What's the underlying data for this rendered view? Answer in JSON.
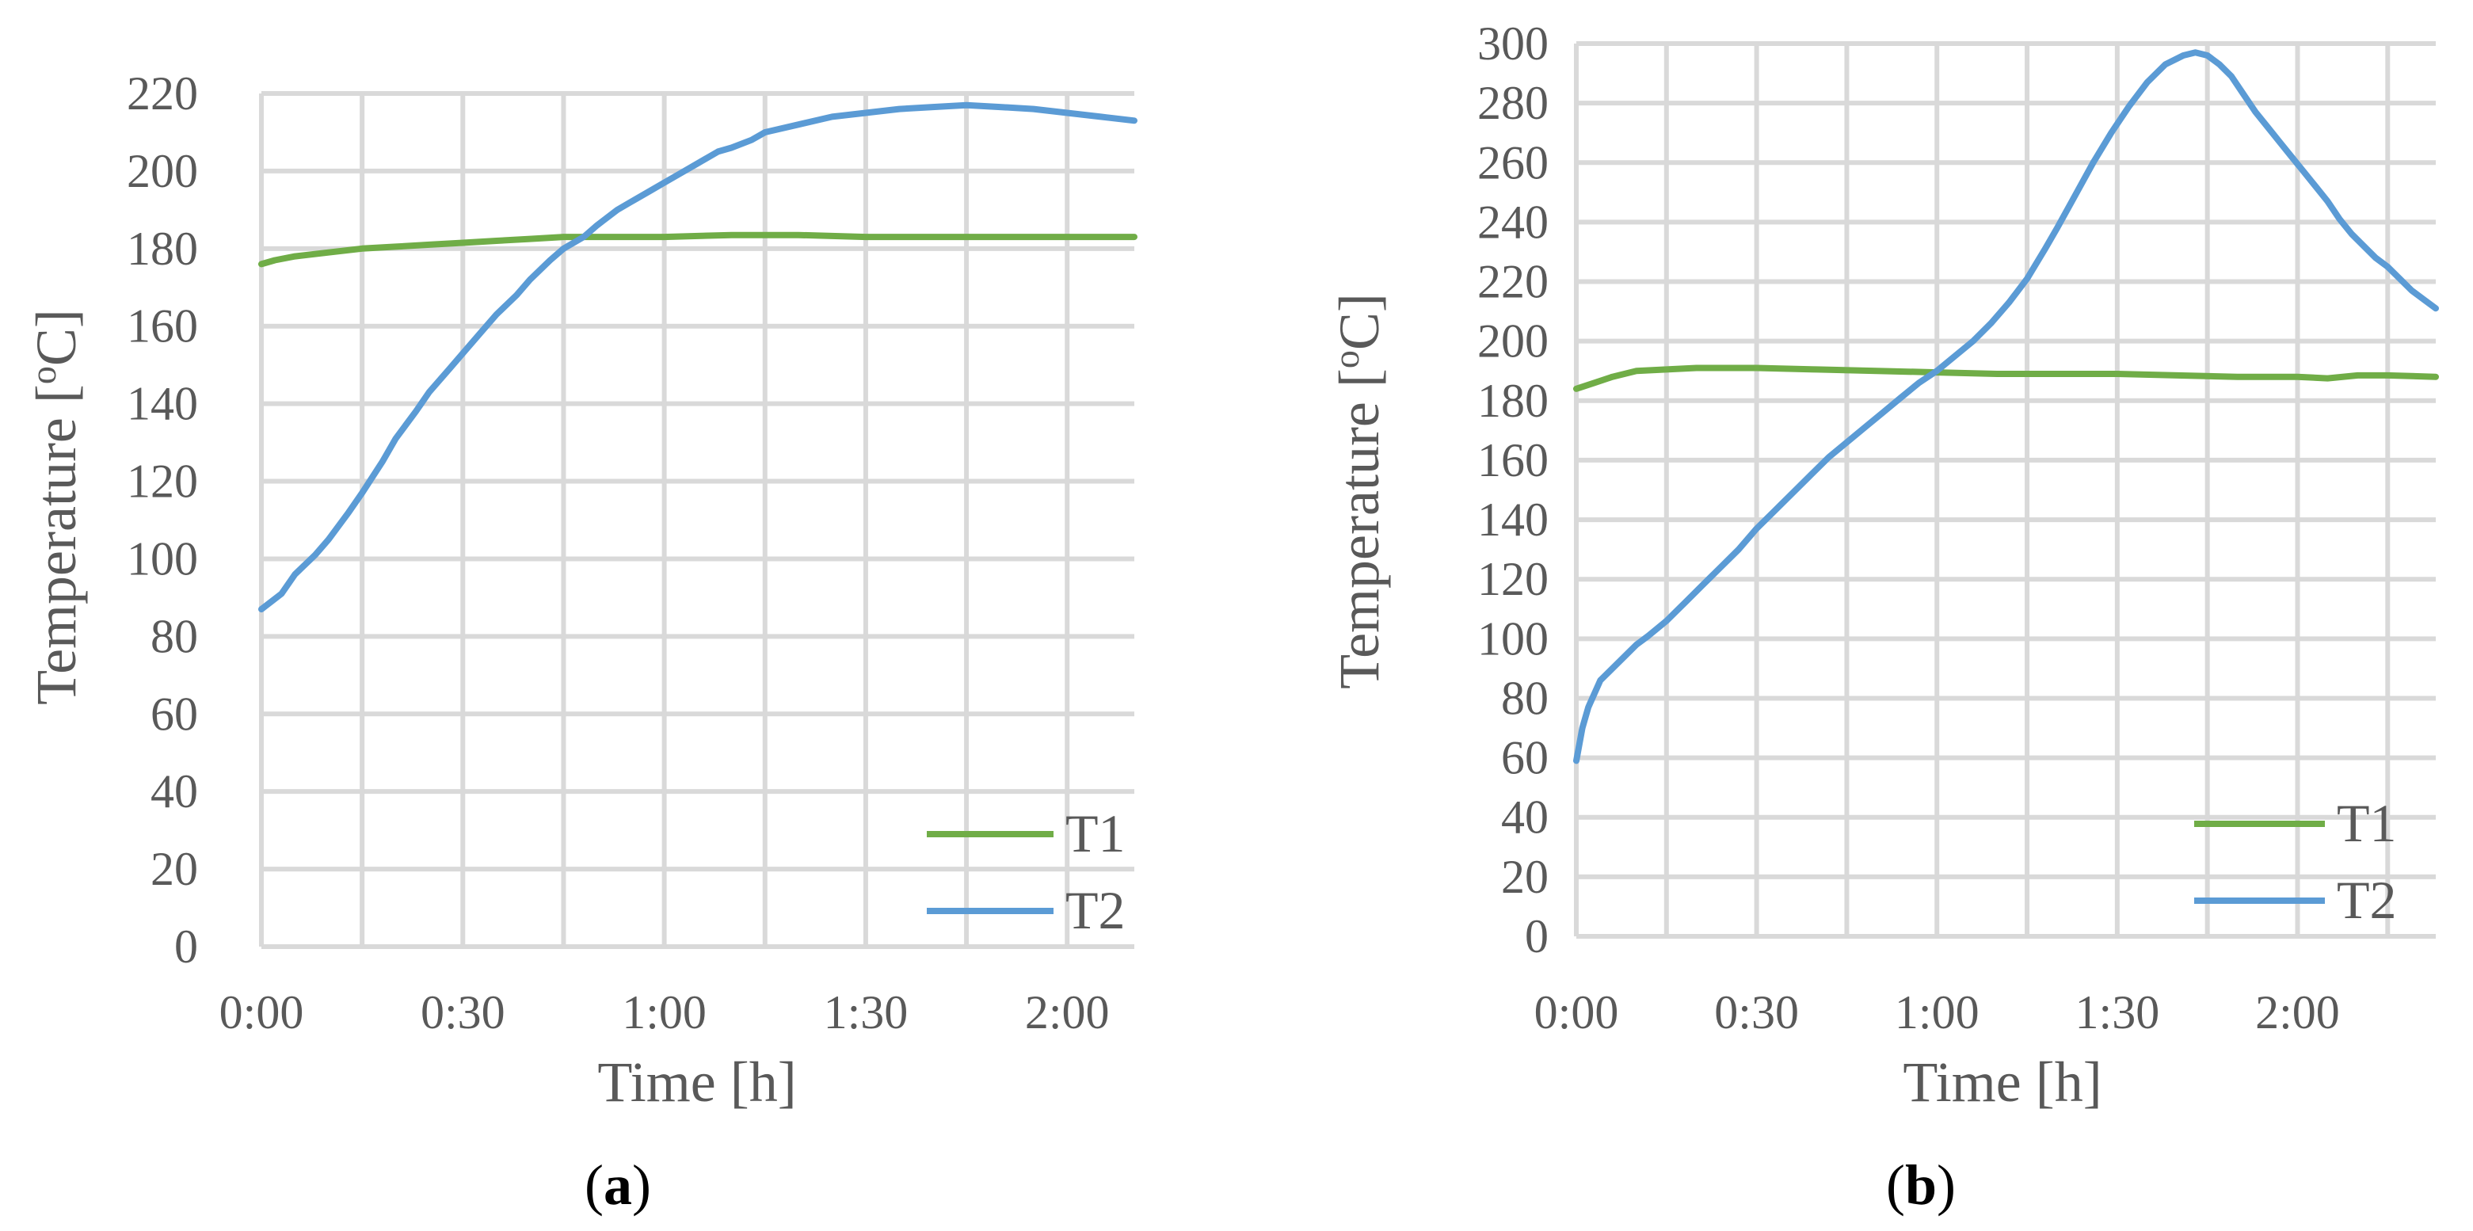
{
  "chart_data": [
    {
      "type": "line",
      "panel_label": "a",
      "xlabel": "Time [h]",
      "ylabel_main": "Temperature [",
      "ylabel_sup": "o",
      "ylabel_end": "C]",
      "x_unit": "minutes",
      "xlim": [
        0,
        130
      ],
      "ylim": [
        0,
        220
      ],
      "ystep": 20,
      "xgrid": [
        0,
        15,
        30,
        45,
        60,
        75,
        90,
        105,
        120
      ],
      "xticks": [
        0,
        30,
        60,
        90,
        120
      ],
      "xtick_labels": [
        "0:00",
        "0:30",
        "1:00",
        "1:30",
        "2:00"
      ],
      "grid": true,
      "legend_position": "bottom-right",
      "series": [
        {
          "name": "T1",
          "color": "#70ad47",
          "points": [
            [
              0,
              176
            ],
            [
              2,
              177
            ],
            [
              5,
              178
            ],
            [
              10,
              179
            ],
            [
              15,
              180
            ],
            [
              20,
              180.5
            ],
            [
              25,
              181
            ],
            [
              30,
              181.5
            ],
            [
              35,
              182
            ],
            [
              40,
              182.5
            ],
            [
              45,
              183
            ],
            [
              50,
              183
            ],
            [
              55,
              183
            ],
            [
              60,
              183
            ],
            [
              70,
              183.5
            ],
            [
              80,
              183.5
            ],
            [
              90,
              183
            ],
            [
              100,
              183
            ],
            [
              110,
              183
            ],
            [
              120,
              183
            ],
            [
              130,
              183
            ]
          ]
        },
        {
          "name": "T2",
          "color": "#5b9bd5",
          "points": [
            [
              0,
              87
            ],
            [
              3,
              91
            ],
            [
              5,
              96
            ],
            [
              8,
              101
            ],
            [
              10,
              105
            ],
            [
              13,
              112
            ],
            [
              15,
              117
            ],
            [
              18,
              125
            ],
            [
              20,
              131
            ],
            [
              23,
              138
            ],
            [
              25,
              143
            ],
            [
              28,
              149
            ],
            [
              30,
              153
            ],
            [
              33,
              159
            ],
            [
              35,
              163
            ],
            [
              38,
              168
            ],
            [
              40,
              172
            ],
            [
              43,
              177
            ],
            [
              45,
              180
            ],
            [
              48,
              183
            ],
            [
              50,
              186
            ],
            [
              53,
              190
            ],
            [
              55,
              192
            ],
            [
              58,
              195
            ],
            [
              60,
              197
            ],
            [
              63,
              200
            ],
            [
              65,
              202
            ],
            [
              68,
              205
            ],
            [
              70,
              206
            ],
            [
              73,
              208
            ],
            [
              75,
              210
            ],
            [
              80,
              212
            ],
            [
              85,
              214
            ],
            [
              90,
              215
            ],
            [
              95,
              216
            ],
            [
              100,
              216.5
            ],
            [
              105,
              217
            ],
            [
              110,
              216.5
            ],
            [
              115,
              216
            ],
            [
              120,
              215
            ],
            [
              125,
              214
            ],
            [
              130,
              213
            ]
          ]
        }
      ]
    },
    {
      "type": "line",
      "panel_label": "b",
      "xlabel": "Time [h]",
      "ylabel_main": "Temperature [",
      "ylabel_sup": "o",
      "ylabel_end": "C]",
      "x_unit": "minutes",
      "xlim": [
        0,
        143
      ],
      "ylim": [
        0,
        300
      ],
      "ystep": 20,
      "xgrid": [
        0,
        15,
        30,
        45,
        60,
        75,
        90,
        105,
        120,
        135
      ],
      "xticks": [
        0,
        30,
        60,
        90,
        120
      ],
      "xtick_labels": [
        "0:00",
        "0:30",
        "1:00",
        "1:30",
        "2:00"
      ],
      "grid": true,
      "legend_position": "bottom-right",
      "series": [
        {
          "name": "T1",
          "color": "#70ad47",
          "points": [
            [
              0,
              184
            ],
            [
              3,
              186
            ],
            [
              6,
              188
            ],
            [
              10,
              190
            ],
            [
              15,
              190.5
            ],
            [
              20,
              191
            ],
            [
              25,
              191
            ],
            [
              30,
              191
            ],
            [
              40,
              190.5
            ],
            [
              50,
              190
            ],
            [
              60,
              189.5
            ],
            [
              70,
              189
            ],
            [
              80,
              189
            ],
            [
              90,
              189
            ],
            [
              100,
              188.5
            ],
            [
              110,
              188
            ],
            [
              120,
              188
            ],
            [
              125,
              187.5
            ],
            [
              130,
              188.5
            ],
            [
              135,
              188.5
            ],
            [
              143,
              188
            ]
          ]
        },
        {
          "name": "T2",
          "color": "#5b9bd5",
          "points": [
            [
              0,
              59
            ],
            [
              1,
              70
            ],
            [
              2,
              77
            ],
            [
              4,
              86
            ],
            [
              6,
              90
            ],
            [
              8,
              94
            ],
            [
              10,
              98
            ],
            [
              12,
              101
            ],
            [
              15,
              106
            ],
            [
              18,
              112
            ],
            [
              21,
              118
            ],
            [
              24,
              124
            ],
            [
              27,
              130
            ],
            [
              30,
              137
            ],
            [
              33,
              143
            ],
            [
              36,
              149
            ],
            [
              39,
              155
            ],
            [
              42,
              161
            ],
            [
              45,
              166
            ],
            [
              48,
              171
            ],
            [
              51,
              176
            ],
            [
              54,
              181
            ],
            [
              57,
              186
            ],
            [
              60,
              190
            ],
            [
              63,
              195
            ],
            [
              66,
              200
            ],
            [
              69,
              206
            ],
            [
              72,
              213
            ],
            [
              75,
              221
            ],
            [
              78,
              231
            ],
            [
              80,
              238
            ],
            [
              83,
              249
            ],
            [
              86,
              260
            ],
            [
              89,
              270
            ],
            [
              92,
              279
            ],
            [
              95,
              287
            ],
            [
              98,
              293
            ],
            [
              101,
              296
            ],
            [
              103,
              297
            ],
            [
              105,
              296
            ],
            [
              107,
              293
            ],
            [
              109,
              289
            ],
            [
              111,
              283
            ],
            [
              113,
              277
            ],
            [
              115,
              272
            ],
            [
              117,
              267
            ],
            [
              119,
              262
            ],
            [
              121,
              257
            ],
            [
              123,
              252
            ],
            [
              125,
              247
            ],
            [
              127,
              241
            ],
            [
              129,
              236
            ],
            [
              131,
              232
            ],
            [
              133,
              228
            ],
            [
              135,
              225
            ],
            [
              137,
              221
            ],
            [
              139,
              217
            ],
            [
              141,
              214
            ],
            [
              143,
              211
            ]
          ]
        }
      ]
    }
  ]
}
